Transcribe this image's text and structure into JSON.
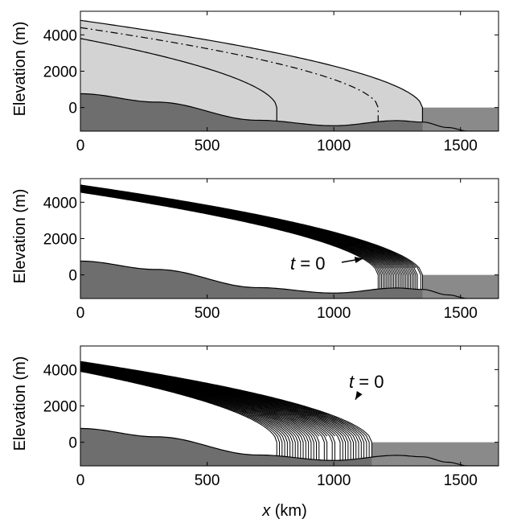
{
  "chart_data": [
    {
      "type": "area",
      "panel": "top",
      "xlabel": "",
      "ylabel": "Elevation (m)",
      "xlim": [
        0,
        1650
      ],
      "ylim": [
        -1300,
        5300
      ],
      "xticks": [
        "0",
        "500",
        "1000",
        "1500"
      ],
      "yticks": [
        "0",
        "2000",
        "4000"
      ],
      "series": [
        {
          "values": [
            [
              0,
              4800
            ],
            [
              1350,
              0
            ]
          ]
        },
        {
          "values": [
            [
              0,
              4400
            ],
            [
              1175,
              0
            ]
          ]
        },
        {
          "values": [
            [
              0,
              3800
            ],
            [
              775,
              0
            ]
          ]
        }
      ]
    },
    {
      "type": "area",
      "panel": "middle",
      "xlabel": "",
      "ylabel": "Elevation (m)",
      "xlim": [
        0,
        1650
      ],
      "ylim": [
        -1300,
        5300
      ],
      "xticks": [
        "0",
        "500",
        "1000",
        "1500"
      ],
      "yticks": [
        "0",
        "2000",
        "4000"
      ],
      "annotation": {
        "label_var": "t",
        "label_rest": " = 0",
        "x": 1080,
        "y": 0
      },
      "series": [
        {
          "values": [
            [
              0,
              4950
            ],
            [
              1350,
              0
            ]
          ]
        },
        {
          "values": [
            [
              0,
              4550
            ],
            [
              1175,
              0
            ]
          ]
        }
      ]
    },
    {
      "type": "area",
      "panel": "bottom",
      "xlabel_var": "x",
      "xlabel_rest": " (km)",
      "ylabel": "Elevation (m)",
      "xlim": [
        0,
        1650
      ],
      "ylim": [
        -1300,
        5300
      ],
      "xticks": [
        "0",
        "500",
        "1000",
        "1500"
      ],
      "yticks": [
        "0",
        "2000",
        "4000"
      ],
      "annotation": {
        "label_var": "t",
        "label_rest": " = 0",
        "x": 1090,
        "y": 2900
      },
      "series": [
        {
          "values": [
            [
              0,
              4450
            ],
            [
              1150,
              0
            ]
          ]
        },
        {
          "values": [
            [
              0,
              3900
            ],
            [
              775,
              0
            ]
          ]
        }
      ]
    }
  ]
}
